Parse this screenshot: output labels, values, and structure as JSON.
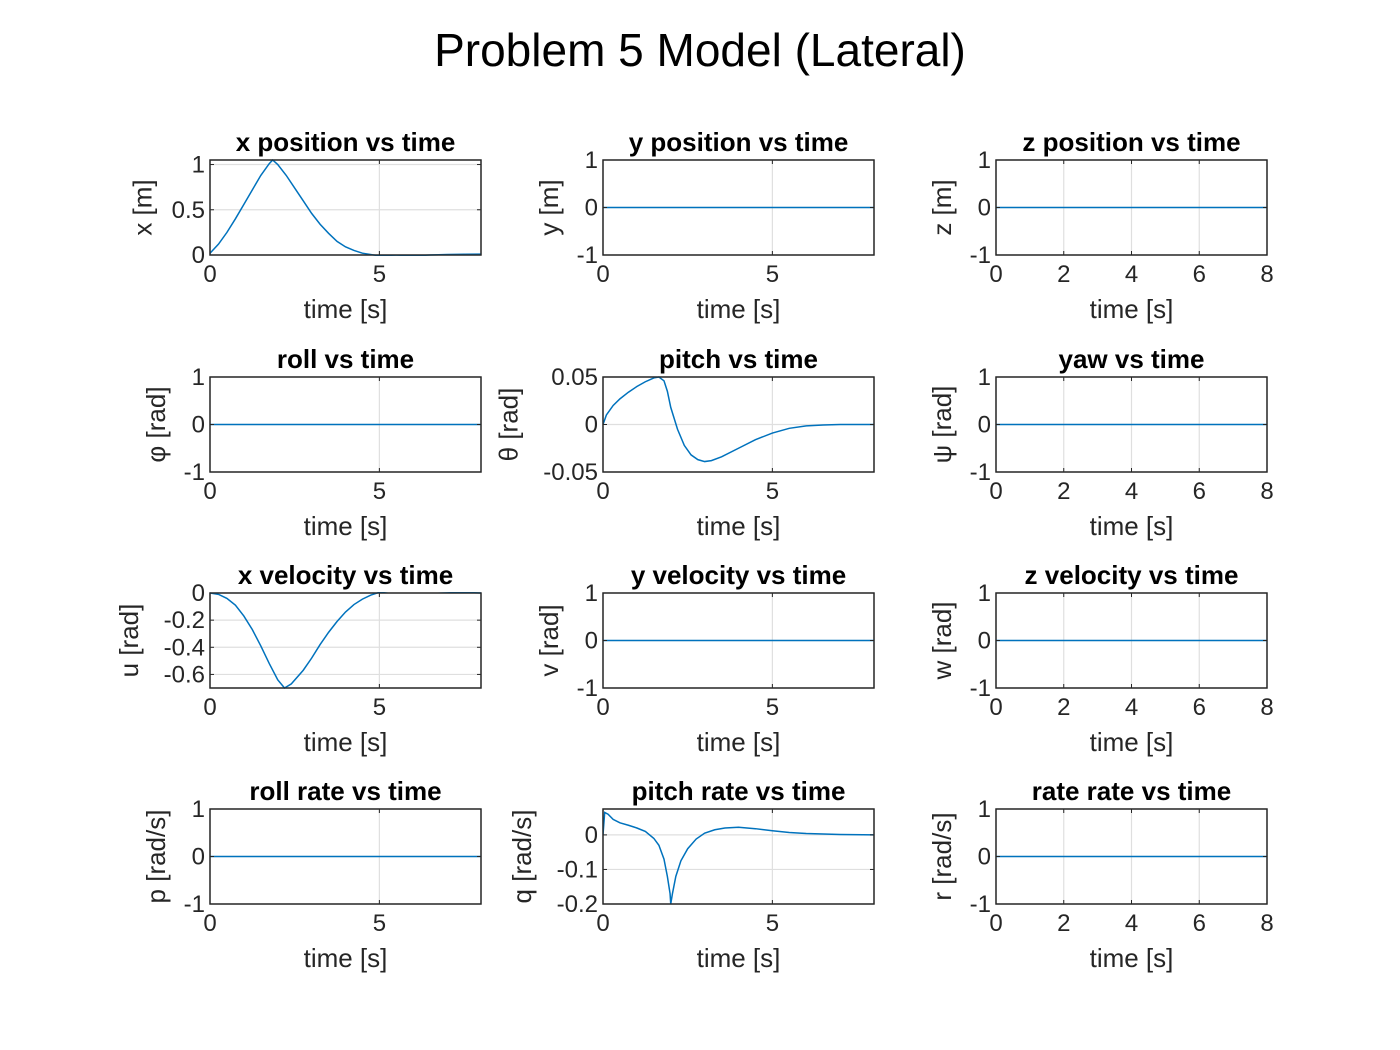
{
  "figure_title": "Problem 5 Model (Lateral)",
  "series_color": "#0072BD",
  "chart_data": [
    {
      "type": "line",
      "title": "x position vs time",
      "xlabel": "time [s]",
      "ylabel": "x [m]",
      "xlim": [
        0,
        8
      ],
      "ylim": [
        0,
        1.05
      ],
      "xticks": [
        0,
        5
      ],
      "xtick_labels": [
        "0",
        "5"
      ],
      "yticks": [
        0,
        0.5,
        1
      ],
      "ytick_labels": [
        "0",
        "0.5",
        "1"
      ],
      "grid": true,
      "x": [
        0,
        0.25,
        0.5,
        0.75,
        1,
        1.25,
        1.5,
        1.75,
        1.85,
        2,
        2.25,
        2.5,
        2.75,
        3,
        3.25,
        3.5,
        3.75,
        4,
        4.25,
        4.5,
        5,
        5.5,
        6,
        6.5,
        7,
        7.5,
        8
      ],
      "y": [
        0.02,
        0.12,
        0.25,
        0.4,
        0.56,
        0.72,
        0.88,
        1.01,
        1.05,
        1.0,
        0.88,
        0.74,
        0.6,
        0.46,
        0.34,
        0.24,
        0.15,
        0.09,
        0.05,
        0.02,
        -0.01,
        -0.015,
        -0.01,
        0.0,
        0.005,
        0.008,
        0.01
      ]
    },
    {
      "type": "line",
      "title": "y position vs time",
      "xlabel": "time [s]",
      "ylabel": "y [m]",
      "xlim": [
        0,
        8
      ],
      "ylim": [
        -1,
        1
      ],
      "xticks": [
        0,
        5
      ],
      "xtick_labels": [
        "0",
        "5"
      ],
      "yticks": [
        -1,
        0,
        1
      ],
      "ytick_labels": [
        "-1",
        "0",
        "1"
      ],
      "grid": true,
      "x": [
        0,
        8
      ],
      "y": [
        0,
        0
      ]
    },
    {
      "type": "line",
      "title": "z position vs time",
      "xlabel": "time [s]",
      "ylabel": "z [m]",
      "xlim": [
        0,
        8
      ],
      "ylim": [
        -1,
        1
      ],
      "xticks": [
        0,
        2,
        4,
        6,
        8
      ],
      "xtick_labels": [
        "0",
        "2",
        "4",
        "6",
        "8"
      ],
      "yticks": [
        -1,
        0,
        1
      ],
      "ytick_labels": [
        "-1",
        "0",
        "1"
      ],
      "grid": true,
      "x": [
        0,
        8
      ],
      "y": [
        0,
        0
      ]
    },
    {
      "type": "line",
      "title": "roll vs time",
      "xlabel": "time [s]",
      "ylabel": "φ [rad]",
      "xlim": [
        0,
        8
      ],
      "ylim": [
        -1,
        1
      ],
      "xticks": [
        0,
        5
      ],
      "xtick_labels": [
        "0",
        "5"
      ],
      "yticks": [
        -1,
        0,
        1
      ],
      "ytick_labels": [
        "-1",
        "0",
        "1"
      ],
      "grid": true,
      "x": [
        0,
        8
      ],
      "y": [
        0,
        0
      ]
    },
    {
      "type": "line",
      "title": "pitch vs time",
      "xlabel": "time [s]",
      "ylabel": "θ [rad]",
      "xlim": [
        0,
        8
      ],
      "ylim": [
        -0.05,
        0.05
      ],
      "xticks": [
        0,
        5
      ],
      "xtick_labels": [
        "0",
        "5"
      ],
      "yticks": [
        -0.05,
        0,
        0.05
      ],
      "ytick_labels": [
        "-0.05",
        "0",
        "0.05"
      ],
      "grid": true,
      "x": [
        0,
        0.1,
        0.3,
        0.5,
        0.75,
        1,
        1.25,
        1.5,
        1.65,
        1.8,
        1.9,
        2,
        2.2,
        2.4,
        2.6,
        2.8,
        3,
        3.2,
        3.5,
        4,
        4.5,
        5,
        5.5,
        6,
        6.5,
        7,
        7.5,
        8
      ],
      "y": [
        0,
        0.01,
        0.02,
        0.027,
        0.034,
        0.04,
        0.045,
        0.049,
        0.05,
        0.046,
        0.035,
        0.018,
        -0.005,
        -0.022,
        -0.032,
        -0.037,
        -0.039,
        -0.038,
        -0.034,
        -0.025,
        -0.016,
        -0.009,
        -0.004,
        -0.0015,
        -0.0005,
        0,
        0,
        0
      ]
    },
    {
      "type": "line",
      "title": "yaw vs time",
      "xlabel": "time [s]",
      "ylabel": "ψ [rad]",
      "xlim": [
        0,
        8
      ],
      "ylim": [
        -1,
        1
      ],
      "xticks": [
        0,
        2,
        4,
        6,
        8
      ],
      "xtick_labels": [
        "0",
        "2",
        "4",
        "6",
        "8"
      ],
      "yticks": [
        -1,
        0,
        1
      ],
      "ytick_labels": [
        "-1",
        "0",
        "1"
      ],
      "grid": true,
      "x": [
        0,
        8
      ],
      "y": [
        0,
        0
      ]
    },
    {
      "type": "line",
      "title": "x velocity vs time",
      "xlabel": "time [s]",
      "ylabel": "u [rad]",
      "xlim": [
        0,
        8
      ],
      "ylim": [
        -0.7,
        0
      ],
      "xticks": [
        0,
        5
      ],
      "xtick_labels": [
        "0",
        "5"
      ],
      "yticks": [
        -0.6,
        -0.4,
        -0.2,
        0
      ],
      "ytick_labels": [
        "-0.6",
        "-0.4",
        "-0.2",
        "0"
      ],
      "grid": true,
      "x": [
        0,
        0.25,
        0.5,
        0.75,
        1,
        1.25,
        1.5,
        1.75,
        2,
        2.2,
        2.4,
        2.75,
        3,
        3.25,
        3.5,
        3.75,
        4,
        4.25,
        4.5,
        4.75,
        5,
        5.5,
        6,
        6.5,
        7,
        7.5,
        8
      ],
      "y": [
        0,
        -0.01,
        -0.04,
        -0.09,
        -0.17,
        -0.27,
        -0.39,
        -0.52,
        -0.64,
        -0.7,
        -0.67,
        -0.57,
        -0.48,
        -0.38,
        -0.29,
        -0.21,
        -0.14,
        -0.085,
        -0.045,
        -0.015,
        0.005,
        0.02,
        0.02,
        0.015,
        0.01,
        0.005,
        0
      ]
    },
    {
      "type": "line",
      "title": "y velocity vs time",
      "xlabel": "time [s]",
      "ylabel": "v [rad]",
      "xlim": [
        0,
        8
      ],
      "ylim": [
        -1,
        1
      ],
      "xticks": [
        0,
        5
      ],
      "xtick_labels": [
        "0",
        "5"
      ],
      "yticks": [
        -1,
        0,
        1
      ],
      "ytick_labels": [
        "-1",
        "0",
        "1"
      ],
      "grid": true,
      "x": [
        0,
        8
      ],
      "y": [
        0,
        0
      ]
    },
    {
      "type": "line",
      "title": "z velocity vs time",
      "xlabel": "time [s]",
      "ylabel": "w [rad]",
      "xlim": [
        0,
        8
      ],
      "ylim": [
        -1,
        1
      ],
      "xticks": [
        0,
        2,
        4,
        6,
        8
      ],
      "xtick_labels": [
        "0",
        "2",
        "4",
        "6",
        "8"
      ],
      "yticks": [
        -1,
        0,
        1
      ],
      "ytick_labels": [
        "-1",
        "0",
        "1"
      ],
      "grid": true,
      "x": [
        0,
        8
      ],
      "y": [
        0,
        0
      ]
    },
    {
      "type": "line",
      "title": "roll rate vs time",
      "xlabel": "time [s]",
      "ylabel": "p [rad/s]",
      "xlim": [
        0,
        8
      ],
      "ylim": [
        -1,
        1
      ],
      "xticks": [
        0,
        5
      ],
      "xtick_labels": [
        "0",
        "5"
      ],
      "yticks": [
        -1,
        0,
        1
      ],
      "ytick_labels": [
        "-1",
        "0",
        "1"
      ],
      "grid": true,
      "x": [
        0,
        8
      ],
      "y": [
        0,
        0
      ]
    },
    {
      "type": "line",
      "title": "pitch rate vs time",
      "xlabel": "time [s]",
      "ylabel": "q [rad/s]",
      "xlim": [
        0,
        8
      ],
      "ylim": [
        -0.2,
        0.075
      ],
      "xticks": [
        0,
        5
      ],
      "xtick_labels": [
        "0",
        "5"
      ],
      "yticks": [
        -0.2,
        -0.1,
        0
      ],
      "ytick_labels": [
        "-0.2",
        "-0.1",
        "0"
      ],
      "grid": true,
      "x": [
        0,
        0.05,
        0.15,
        0.3,
        0.5,
        0.75,
        1,
        1.25,
        1.5,
        1.65,
        1.8,
        1.9,
        1.98,
        2.0,
        2.05,
        2.15,
        2.3,
        2.5,
        2.75,
        3,
        3.3,
        3.6,
        4,
        4.5,
        5,
        5.5,
        6,
        7,
        8
      ],
      "y": [
        0,
        0.065,
        0.06,
        0.045,
        0.035,
        0.028,
        0.02,
        0.01,
        -0.01,
        -0.03,
        -0.07,
        -0.12,
        -0.17,
        -0.2,
        -0.17,
        -0.12,
        -0.075,
        -0.04,
        -0.012,
        0.005,
        0.015,
        0.02,
        0.022,
        0.018,
        0.012,
        0.007,
        0.004,
        0.001,
        0
      ]
    },
    {
      "type": "line",
      "title": "rate rate vs time",
      "xlabel": "time [s]",
      "ylabel": "r [rad/s]",
      "xlim": [
        0,
        8
      ],
      "ylim": [
        -1,
        1
      ],
      "xticks": [
        0,
        2,
        4,
        6,
        8
      ],
      "xtick_labels": [
        "0",
        "2",
        "4",
        "6",
        "8"
      ],
      "yticks": [
        -1,
        0,
        1
      ],
      "ytick_labels": [
        "-1",
        "0",
        "1"
      ],
      "grid": true,
      "x": [
        0,
        8
      ],
      "y": [
        0,
        0
      ]
    }
  ]
}
